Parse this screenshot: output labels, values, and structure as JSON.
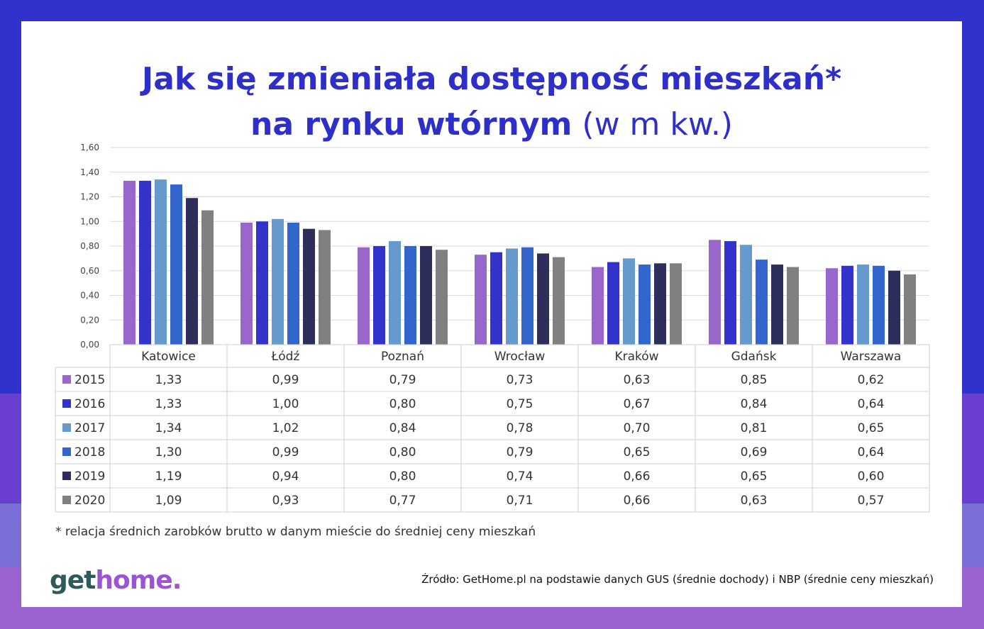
{
  "page": {
    "title_line1": "Jak się zmieniała dostępność mieszkań*",
    "title_line2_bold": "na rynku wtórnym",
    "title_line2_unit": "(w m kw.)",
    "footnote": "* relacja średnich zarobków brutto w danym mieście do średniej ceny mieszkań",
    "logo_part1": "get",
    "logo_part2": "home.",
    "source": "Źródło: GetHome.pl na podstawie danych GUS (średnie dochody) i NBP (średnie ceny mieszkań)"
  },
  "colors": {
    "frame_top": "#3131cb",
    "frame_mid": "#6a3fd0",
    "frame_bottom": "#9a63d0",
    "title": "#2e2ec8",
    "logo_dark": "#2f5a5a",
    "logo_accent": "#9b55d4"
  },
  "chart_data": {
    "type": "bar",
    "categories": [
      "Katowice",
      "Łódź",
      "Poznań",
      "Wrocław",
      "Kraków",
      "Gdańsk",
      "Warszawa"
    ],
    "series": [
      {
        "name": "2015",
        "color": "#9966cc",
        "values": [
          1.33,
          0.99,
          0.79,
          0.73,
          0.63,
          0.85,
          0.62
        ],
        "labels": [
          "1,33",
          "0,99",
          "0,79",
          "0,73",
          "0,63",
          "0,85",
          "0,62"
        ]
      },
      {
        "name": "2016",
        "color": "#3333cc",
        "values": [
          1.33,
          1.0,
          0.8,
          0.75,
          0.67,
          0.84,
          0.64
        ],
        "labels": [
          "1,33",
          "1,00",
          "0,80",
          "0,75",
          "0,67",
          "0,84",
          "0,64"
        ]
      },
      {
        "name": "2017",
        "color": "#6699cc",
        "values": [
          1.34,
          1.02,
          0.84,
          0.78,
          0.7,
          0.81,
          0.65
        ],
        "labels": [
          "1,34",
          "1,02",
          "0,84",
          "0,78",
          "0,70",
          "0,81",
          "0,65"
        ]
      },
      {
        "name": "2018",
        "color": "#3366cc",
        "values": [
          1.3,
          0.99,
          0.8,
          0.79,
          0.65,
          0.69,
          0.64
        ],
        "labels": [
          "1,30",
          "0,99",
          "0,80",
          "0,79",
          "0,65",
          "0,69",
          "0,64"
        ]
      },
      {
        "name": "2019",
        "color": "#2e2e5c",
        "values": [
          1.19,
          0.94,
          0.8,
          0.74,
          0.66,
          0.65,
          0.6
        ],
        "labels": [
          "1,19",
          "0,94",
          "0,80",
          "0,74",
          "0,66",
          "0,65",
          "0,60"
        ]
      },
      {
        "name": "2020",
        "color": "#808080",
        "values": [
          1.09,
          0.93,
          0.77,
          0.71,
          0.66,
          0.63,
          0.57
        ],
        "labels": [
          "1,09",
          "0,93",
          "0,77",
          "0,71",
          "0,66",
          "0,63",
          "0,57"
        ]
      }
    ],
    "yticks": [
      "0,00",
      "0,20",
      "0,40",
      "0,60",
      "0,80",
      "1,00",
      "1,20",
      "1,40",
      "1,60"
    ],
    "ylim": [
      0,
      1.6
    ],
    "grid": true,
    "legend": "data-table"
  }
}
